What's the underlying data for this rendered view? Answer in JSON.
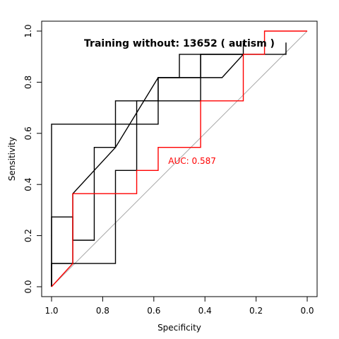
{
  "chart_data": {
    "type": "line",
    "title": "Training without: 13652 ( autism )",
    "xlabel": "Specificity",
    "ylabel": "Sensitivity",
    "xlim": [
      1.0,
      0.0
    ],
    "ylim": [
      0.0,
      1.0
    ],
    "x_reversed": true,
    "x_ticks": [
      "1.0",
      "0.8",
      "0.6",
      "0.4",
      "0.2",
      "0.0"
    ],
    "x_tick_values": [
      1.0,
      0.8,
      0.6,
      0.4,
      0.2,
      0.0
    ],
    "y_ticks": [
      "0.0",
      "0.2",
      "0.4",
      "0.6",
      "0.8",
      "1.0"
    ],
    "y_tick_values": [
      0.0,
      0.2,
      0.4,
      0.6,
      0.8,
      1.0
    ],
    "grid": false,
    "annotation": {
      "text": "AUC: 0.587",
      "x": 0.45,
      "y": 0.48
    },
    "reference_line": {
      "from": [
        1.0,
        0.0
      ],
      "to": [
        0.0,
        1.0
      ],
      "color": "#aaaaaa"
    },
    "series": [
      {
        "color": "#ff0000",
        "points": [
          [
            1.0,
            0.0
          ],
          [
            0.917,
            0.091
          ],
          [
            0.917,
            0.364
          ],
          [
            0.667,
            0.364
          ],
          [
            0.667,
            0.455
          ],
          [
            0.583,
            0.455
          ],
          [
            0.583,
            0.545
          ],
          [
            0.417,
            0.545
          ],
          [
            0.417,
            0.727
          ],
          [
            0.25,
            0.727
          ],
          [
            0.25,
            0.909
          ],
          [
            0.167,
            0.909
          ],
          [
            0.167,
            1.0
          ],
          [
            0.0,
            1.0
          ]
        ]
      },
      {
        "color": "#000000",
        "points": [
          [
            1.0,
            0.0
          ],
          [
            1.0,
            0.636
          ],
          [
            0.583,
            0.636
          ],
          [
            0.583,
            0.818
          ],
          [
            0.333,
            0.818
          ],
          [
            0.25,
            0.909
          ],
          [
            0.083,
            0.909
          ],
          [
            0.083,
            0.955
          ]
        ]
      },
      {
        "color": "#000000",
        "points": [
          [
            1.0,
            0.0
          ],
          [
            1.0,
            0.091
          ],
          [
            0.75,
            0.091
          ],
          [
            0.75,
            0.455
          ],
          [
            0.667,
            0.455
          ],
          [
            0.667,
            0.727
          ],
          [
            0.417,
            0.727
          ],
          [
            0.417,
            0.909
          ],
          [
            0.25,
            0.909
          ],
          [
            0.25,
            0.955
          ]
        ]
      },
      {
        "color": "#000000",
        "points": [
          [
            1.0,
            0.0
          ],
          [
            1.0,
            0.273
          ],
          [
            0.917,
            0.273
          ],
          [
            0.917,
            0.182
          ],
          [
            0.833,
            0.182
          ],
          [
            0.833,
            0.545
          ],
          [
            0.75,
            0.545
          ],
          [
            0.75,
            0.727
          ],
          [
            0.583,
            0.727
          ],
          [
            0.583,
            0.818
          ],
          [
            0.5,
            0.818
          ],
          [
            0.5,
            0.909
          ],
          [
            0.25,
            0.909
          ]
        ]
      },
      {
        "color": "#000000",
        "points": [
          [
            1.0,
            0.0
          ],
          [
            1.0,
            0.091
          ],
          [
            0.917,
            0.091
          ],
          [
            0.917,
            0.364
          ],
          [
            0.75,
            0.545
          ],
          [
            0.583,
            0.818
          ],
          [
            0.417,
            0.818
          ],
          [
            0.417,
            0.909
          ],
          [
            0.25,
            0.909
          ]
        ]
      }
    ]
  }
}
